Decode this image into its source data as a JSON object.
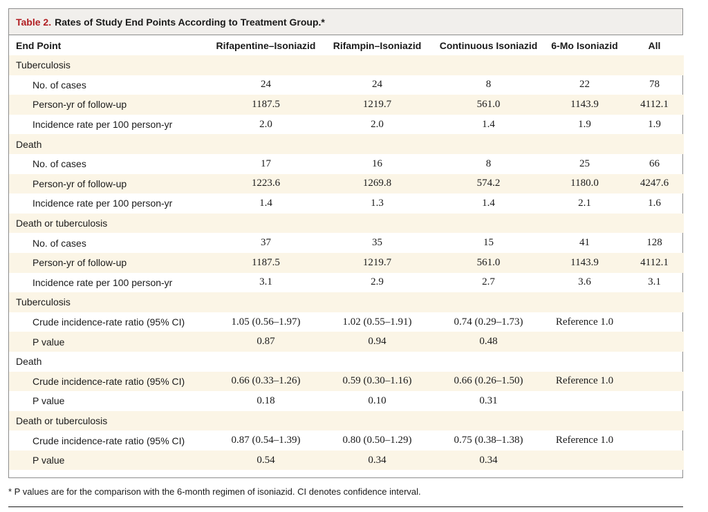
{
  "table": {
    "title_number": "Table 2.",
    "title_text": "Rates of Study End Points According to Treatment Group.*",
    "headers": [
      "End Point",
      "Rifapentine–Isoniazid",
      "Rifampin–Isoniazid",
      "Continuous Isoniazid",
      "6-Mo Isoniazid",
      "All"
    ],
    "rows": [
      {
        "label": "Tuberculosis",
        "section": true,
        "cells": [
          "",
          "",
          "",
          "",
          ""
        ]
      },
      {
        "label": "No. of cases",
        "section": false,
        "cells": [
          "24",
          "24",
          "8",
          "22",
          "78"
        ]
      },
      {
        "label": "Person-yr of follow-up",
        "section": false,
        "cells": [
          "1187.5",
          "1219.7",
          "561.0",
          "1143.9",
          "4112.1"
        ]
      },
      {
        "label": "Incidence rate per 100 person-yr",
        "section": false,
        "cells": [
          "2.0",
          "2.0",
          "1.4",
          "1.9",
          "1.9"
        ]
      },
      {
        "label": "Death",
        "section": true,
        "cells": [
          "",
          "",
          "",
          "",
          ""
        ]
      },
      {
        "label": "No. of cases",
        "section": false,
        "cells": [
          "17",
          "16",
          "8",
          "25",
          "66"
        ]
      },
      {
        "label": "Person-yr of follow-up",
        "section": false,
        "cells": [
          "1223.6",
          "1269.8",
          "574.2",
          "1180.0",
          "4247.6"
        ]
      },
      {
        "label": "Incidence rate per 100 person-yr",
        "section": false,
        "cells": [
          "1.4",
          "1.3",
          "1.4",
          "2.1",
          "1.6"
        ]
      },
      {
        "label": "Death or tuberculosis",
        "section": true,
        "cells": [
          "",
          "",
          "",
          "",
          ""
        ]
      },
      {
        "label": "No. of cases",
        "section": false,
        "cells": [
          "37",
          "35",
          "15",
          "41",
          "128"
        ]
      },
      {
        "label": "Person-yr of follow-up",
        "section": false,
        "cells": [
          "1187.5",
          "1219.7",
          "561.0",
          "1143.9",
          "4112.1"
        ]
      },
      {
        "label": "Incidence rate per 100 person-yr",
        "section": false,
        "cells": [
          "3.1",
          "2.9",
          "2.7",
          "3.6",
          "3.1"
        ]
      },
      {
        "label": "Tuberculosis",
        "section": true,
        "cells": [
          "",
          "",
          "",
          "",
          ""
        ]
      },
      {
        "label": "Crude incidence-rate ratio (95% CI)",
        "section": false,
        "cells": [
          "1.05 (0.56–1.97)",
          "1.02 (0.55–1.91)",
          "0.74 (0.29–1.73)",
          "Reference 1.0",
          ""
        ]
      },
      {
        "label": "P value",
        "section": false,
        "cells": [
          "0.87",
          "0.94",
          "0.48",
          "",
          ""
        ]
      },
      {
        "label": "Death",
        "section": true,
        "cells": [
          "",
          "",
          "",
          "",
          ""
        ]
      },
      {
        "label": "Crude incidence-rate ratio (95% CI)",
        "section": false,
        "cells": [
          "0.66 (0.33–1.26)",
          "0.59 (0.30–1.16)",
          "0.66 (0.26–1.50)",
          "Reference 1.0",
          ""
        ]
      },
      {
        "label": "P value",
        "section": false,
        "cells": [
          "0.18",
          "0.10",
          "0.31",
          "",
          ""
        ]
      },
      {
        "label": "Death or tuberculosis",
        "section": true,
        "cells": [
          "",
          "",
          "",
          "",
          ""
        ]
      },
      {
        "label": "Crude incidence-rate ratio (95% CI)",
        "section": false,
        "cells": [
          "0.87 (0.54–1.39)",
          "0.80 (0.50–1.29)",
          "0.75 (0.38–1.38)",
          "Reference 1.0",
          ""
        ]
      },
      {
        "label": "P value",
        "section": false,
        "cells": [
          "0.54",
          "0.34",
          "0.34",
          "",
          ""
        ]
      }
    ],
    "footnote": "* P values are for the comparison with the 6-month regimen of isoniazid. CI denotes confidence interval."
  }
}
